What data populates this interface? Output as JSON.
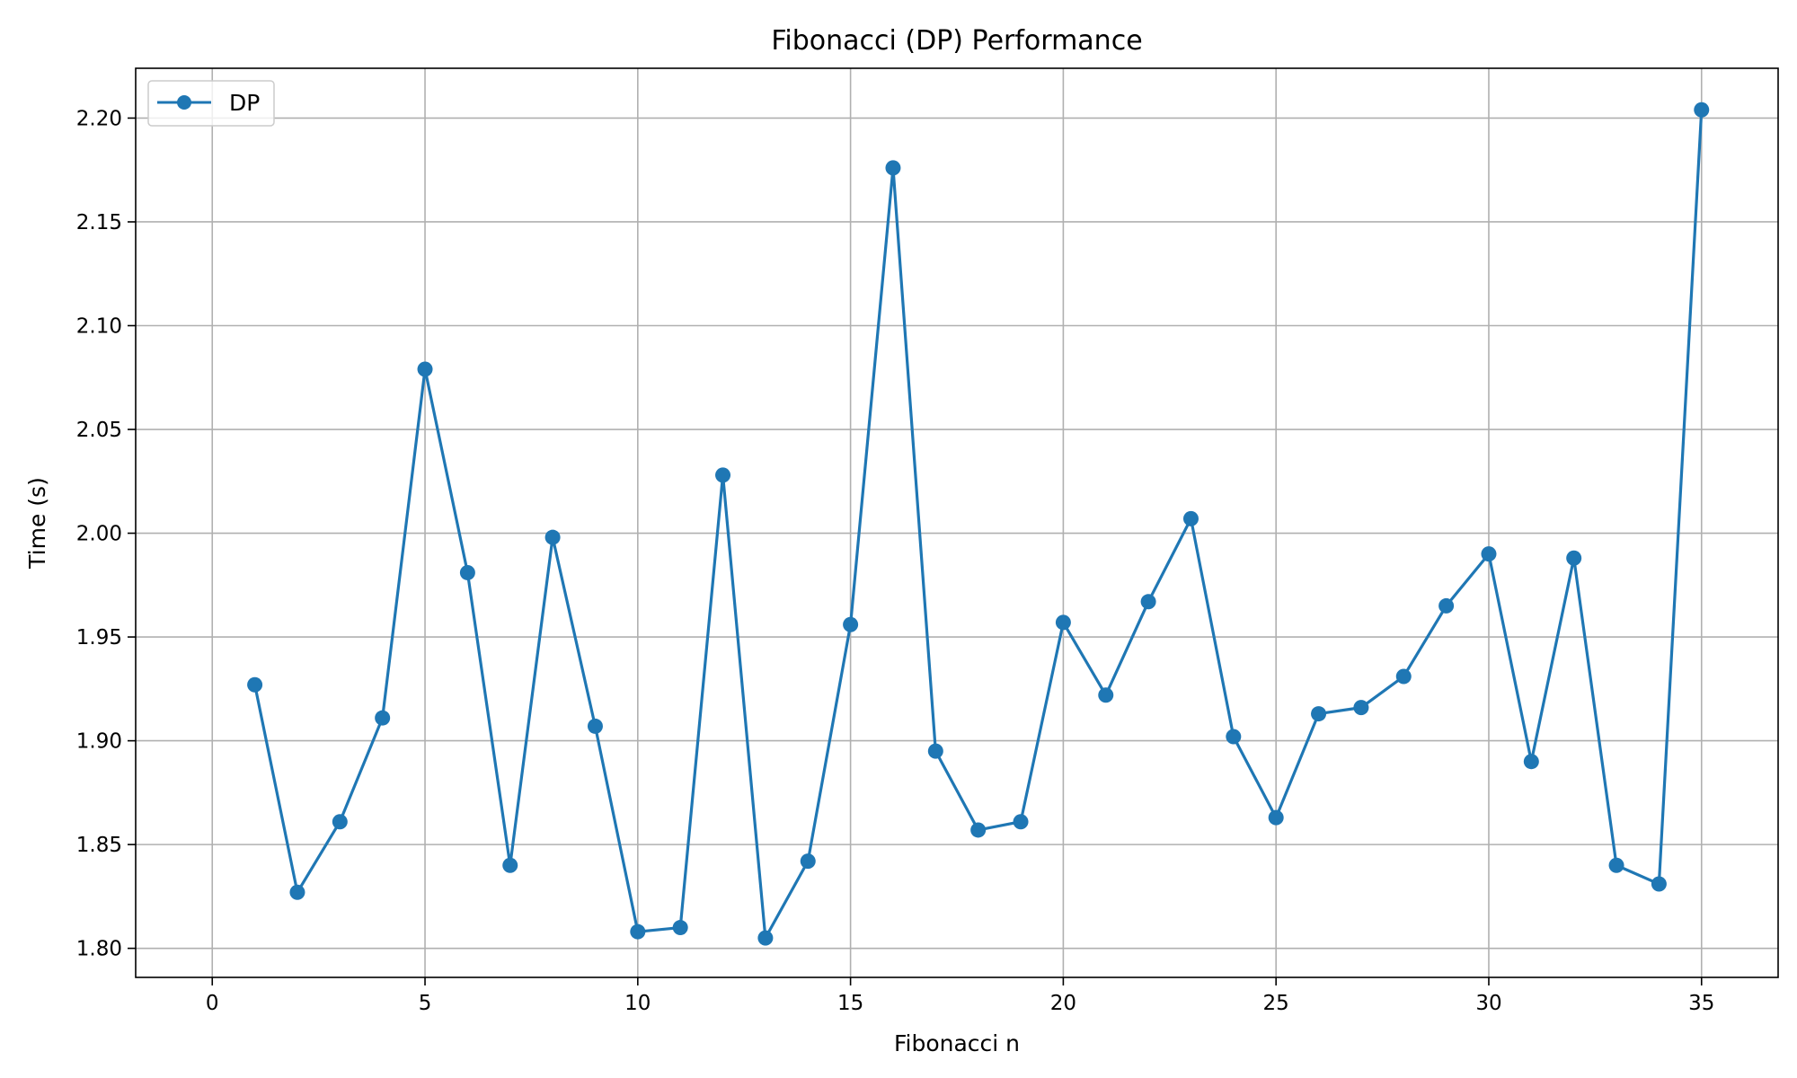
{
  "chart_data": {
    "type": "line",
    "title": "Fibonacci (DP) Performance",
    "xlabel": "Fibonacci n",
    "ylabel": "Time (s)",
    "xlim": [
      -1.8,
      36.8
    ],
    "ylim": [
      1.786,
      2.224
    ],
    "xticks": [
      0,
      5,
      10,
      15,
      20,
      25,
      30,
      35
    ],
    "xtick_labels": [
      "0",
      "5",
      "10",
      "15",
      "20",
      "25",
      "30",
      "35"
    ],
    "yticks": [
      1.8,
      1.85,
      1.9,
      1.95,
      2.0,
      2.05,
      2.1,
      2.15,
      2.2
    ],
    "ytick_labels": [
      "1.80",
      "1.85",
      "1.90",
      "1.95",
      "2.00",
      "2.05",
      "2.10",
      "2.15",
      "2.20"
    ],
    "grid": true,
    "legend_position": "upper-left",
    "series": [
      {
        "name": "DP",
        "color": "#1f77b4",
        "marker": "circle",
        "x": [
          1,
          2,
          3,
          4,
          5,
          6,
          7,
          8,
          9,
          10,
          11,
          12,
          13,
          14,
          15,
          16,
          17,
          18,
          19,
          20,
          21,
          22,
          23,
          24,
          25,
          26,
          27,
          28,
          29,
          30,
          31,
          32,
          33,
          34,
          35
        ],
        "y": [
          1.927,
          1.827,
          1.861,
          1.911,
          2.079,
          1.981,
          1.84,
          1.998,
          1.907,
          1.808,
          1.81,
          2.028,
          1.805,
          1.842,
          1.956,
          2.176,
          1.895,
          1.857,
          1.861,
          1.957,
          1.922,
          1.967,
          2.007,
          1.902,
          1.863,
          1.913,
          1.916,
          1.931,
          1.965,
          1.99,
          1.89,
          1.988,
          1.84,
          1.831,
          2.204
        ]
      }
    ]
  }
}
